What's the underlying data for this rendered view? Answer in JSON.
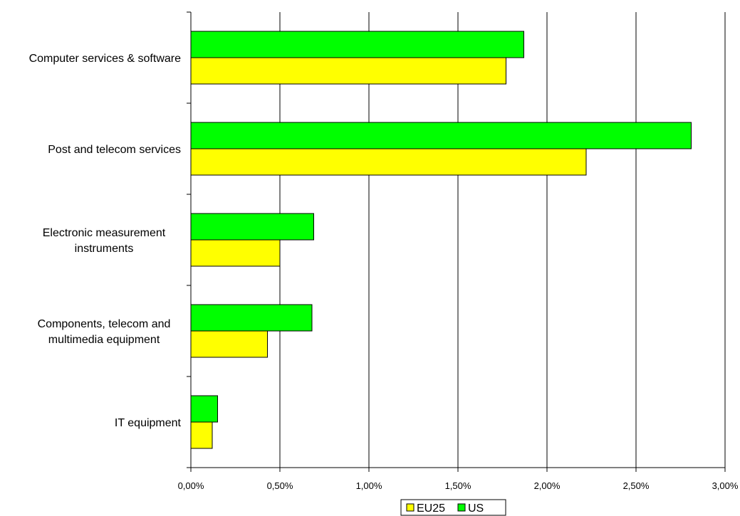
{
  "chart_data": {
    "type": "bar",
    "orientation": "horizontal",
    "title": "",
    "xlabel": "",
    "ylabel": "",
    "categories": [
      "Computer services & software",
      "Post and telecom services",
      "Electronic measurement instruments",
      "Components, telecom and multimedia equipment",
      "IT equipment"
    ],
    "category_label_lines": [
      [
        "Computer services & software"
      ],
      [
        "Post and telecom services"
      ],
      [
        "Electronic measurement",
        "instruments"
      ],
      [
        "Components, telecom and",
        "multimedia equipment"
      ],
      [
        "IT equipment"
      ]
    ],
    "series": [
      {
        "name": "EU25",
        "color": "#ffff00",
        "values": [
          1.77,
          2.22,
          0.5,
          0.43,
          0.12
        ]
      },
      {
        "name": "US",
        "color": "#00ff00",
        "values": [
          1.87,
          2.81,
          0.69,
          0.68,
          0.15
        ]
      }
    ],
    "xlim": [
      0,
      3
    ],
    "x_ticks": [
      0,
      0.5,
      1,
      1.5,
      2,
      2.5,
      3
    ],
    "x_tick_labels": [
      "0,00%",
      "0,50%",
      "1,00%",
      "1,50%",
      "2,00%",
      "2,50%",
      "3,00%"
    ],
    "unit": "%",
    "grid": "vertical",
    "legend_position": "bottom-center"
  }
}
